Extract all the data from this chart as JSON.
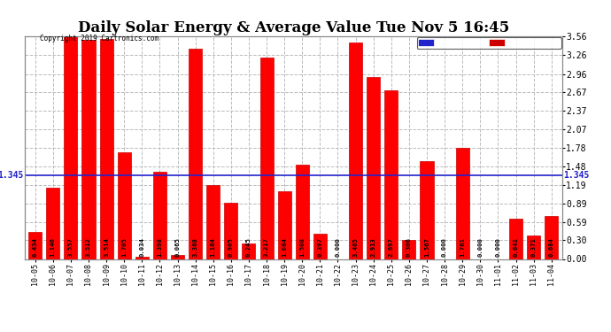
{
  "title": "Daily Solar Energy & Average Value Tue Nov 5 16:45",
  "copyright": "Copyright 2019 Cartronics.com",
  "categories": [
    "10-05",
    "10-06",
    "10-07",
    "10-08",
    "10-09",
    "10-10",
    "10-11",
    "10-12",
    "10-13",
    "10-14",
    "10-15",
    "10-16",
    "10-17",
    "10-18",
    "10-19",
    "10-20",
    "10-21",
    "10-22",
    "10-23",
    "10-24",
    "10-25",
    "10-26",
    "10-27",
    "10-28",
    "10-29",
    "10-30",
    "11-01",
    "11-02",
    "11-03",
    "11-04"
  ],
  "values": [
    0.434,
    1.146,
    3.557,
    3.512,
    3.514,
    1.705,
    0.034,
    1.398,
    0.065,
    3.368,
    1.184,
    0.905,
    0.245,
    3.217,
    1.084,
    1.508,
    0.397,
    0.0,
    3.465,
    2.913,
    2.697,
    0.306,
    1.567,
    0.0,
    1.781,
    0.0,
    0.0,
    0.641,
    0.371,
    0.684
  ],
  "average": 1.345,
  "bar_color": "#ff0000",
  "avg_line_color": "#2222cc",
  "ylim": [
    0.0,
    3.56
  ],
  "yticks": [
    0.0,
    0.3,
    0.59,
    0.89,
    1.19,
    1.48,
    1.78,
    2.07,
    2.37,
    2.67,
    2.96,
    3.26,
    3.56
  ],
  "background_color": "#ffffff",
  "grid_color": "#bbbbbb",
  "title_fontsize": 12,
  "legend_avg_bg": "#2222cc",
  "legend_daily_bg": "#cc0000",
  "bar_width": 0.75
}
